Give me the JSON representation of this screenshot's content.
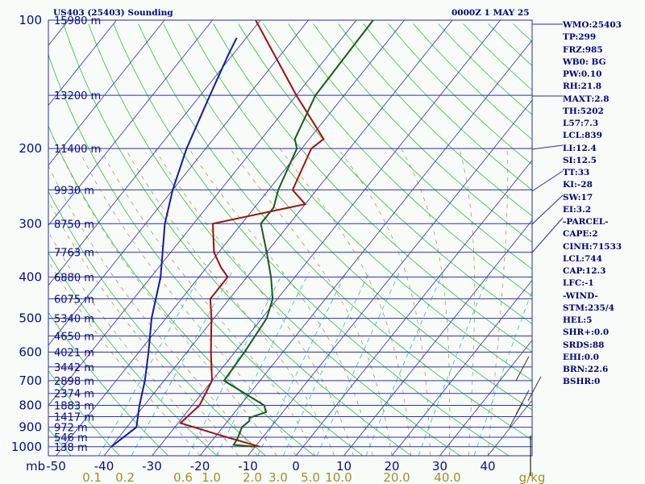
{
  "header": {
    "station": "US403 (25403) Sounding",
    "time": "0000Z  1 MAY 25"
  },
  "indices": [
    "WMO:25403",
    "TP:299",
    "FRZ:985",
    "WB0: BG",
    "PW:0.10",
    "RH:21.8",
    "MAXT:2.8",
    "TH:5202",
    "L57:7.3",
    "LCL:839",
    "LI:12.4",
    "SI:12.5",
    "TT:33",
    "KI:-28",
    "SW:17",
    "EI:3.2",
    "-PARCEL-",
    "CAPE:2",
    "CINH:71533",
    "LCL:744",
    "CAP:12.3",
    "LFC:-1",
    "-WIND-",
    "STM:235/4",
    "HEL:5",
    "SHR+:0.0",
    "SRDS:88",
    "EHI:0.0",
    "BRN:22.6",
    "BSHR:0"
  ],
  "chart_data": {
    "type": "skew-t",
    "pressure_axis_unit": "mb",
    "pressure_labels": [
      100,
      200,
      300,
      400,
      500,
      600,
      700,
      800,
      900,
      1000
    ],
    "height_levels": [
      {
        "p": 100,
        "label": "15980 m"
      },
      {
        "p": 150,
        "label": "13200 m"
      },
      {
        "p": 200,
        "label": "11400 m"
      },
      {
        "p": 250,
        "label": "9930 m"
      },
      {
        "p": 300,
        "label": "8750 m"
      },
      {
        "p": 350,
        "label": "7763 m"
      },
      {
        "p": 400,
        "label": "6880 m"
      },
      {
        "p": 450,
        "label": "6075 m"
      },
      {
        "p": 500,
        "label": "5340 m"
      },
      {
        "p": 550,
        "label": "4650 m"
      },
      {
        "p": 600,
        "label": "4021 m"
      },
      {
        "p": 650,
        "label": "3442 m"
      },
      {
        "p": 700,
        "label": "2898 m"
      },
      {
        "p": 750,
        "label": "2374 m"
      },
      {
        "p": 800,
        "label": "1883 m"
      },
      {
        "p": 850,
        "label": "1417 m"
      },
      {
        "p": 900,
        "label": "972 m"
      },
      {
        "p": 950,
        "label": "546 m"
      },
      {
        "p": 1000,
        "label": "138 m"
      }
    ],
    "temperature_ticks": [
      -50,
      -40,
      -30,
      -20,
      -10,
      0,
      10,
      20,
      30,
      40
    ],
    "mixing_ratio_unit": "g/kg",
    "mixing_ratio_labels": [
      "0.1",
      "0.2",
      "0.6",
      "1.0",
      "2.0",
      "3.0",
      "5.0",
      "10.0",
      "20.0",
      "40.0"
    ],
    "series": [
      {
        "name": "temperature",
        "color": "#1a5a1a",
        "points": [
          {
            "p": 1000,
            "t": -10
          },
          {
            "p": 990,
            "t": -14.8
          },
          {
            "p": 960,
            "t": -15
          },
          {
            "p": 900,
            "t": -16
          },
          {
            "p": 870,
            "t": -15.5
          },
          {
            "p": 855,
            "t": -16
          },
          {
            "p": 830,
            "t": -13.5
          },
          {
            "p": 800,
            "t": -15
          },
          {
            "p": 700,
            "t": -27.5
          },
          {
            "p": 600,
            "t": -28
          },
          {
            "p": 500,
            "t": -29
          },
          {
            "p": 450,
            "t": -31
          },
          {
            "p": 400,
            "t": -35
          },
          {
            "p": 350,
            "t": -40
          },
          {
            "p": 300,
            "t": -46
          },
          {
            "p": 275,
            "t": -46
          },
          {
            "p": 250,
            "t": -48
          },
          {
            "p": 200,
            "t": -51
          },
          {
            "p": 190,
            "t": -53
          },
          {
            "p": 150,
            "t": -56
          },
          {
            "p": 100,
            "t": -56.5
          }
        ]
      },
      {
        "name": "dewpoint",
        "color": "#1818a0",
        "points": [
          {
            "p": 1000,
            "t": -40
          },
          {
            "p": 900,
            "t": -38
          },
          {
            "p": 800,
            "t": -41
          },
          {
            "p": 700,
            "t": -44
          },
          {
            "p": 600,
            "t": -48
          },
          {
            "p": 500,
            "t": -53
          },
          {
            "p": 400,
            "t": -58
          },
          {
            "p": 300,
            "t": -66
          },
          {
            "p": 250,
            "t": -70
          },
          {
            "p": 200,
            "t": -74
          },
          {
            "p": 150,
            "t": -78
          },
          {
            "p": 120,
            "t": -81
          },
          {
            "p": 110,
            "t": -82
          }
        ]
      },
      {
        "name": "parcel",
        "color": "#a01010",
        "points": [
          {
            "p": 1000,
            "t": -9
          },
          {
            "p": 935,
            "t": -20
          },
          {
            "p": 880,
            "t": -29.5
          },
          {
            "p": 800,
            "t": -28.5
          },
          {
            "p": 700,
            "t": -30
          },
          {
            "p": 600,
            "t": -35
          },
          {
            "p": 500,
            "t": -40.5
          },
          {
            "p": 450,
            "t": -44
          },
          {
            "p": 400,
            "t": -44
          },
          {
            "p": 380,
            "t": -47
          },
          {
            "p": 350,
            "t": -51
          },
          {
            "p": 300,
            "t": -56
          },
          {
            "p": 270,
            "t": -40
          },
          {
            "p": 250,
            "t": -45
          },
          {
            "p": 200,
            "t": -48
          },
          {
            "p": 190,
            "t": -47
          },
          {
            "p": 150,
            "t": -60
          },
          {
            "p": 100,
            "t": -81
          }
        ]
      }
    ]
  }
}
